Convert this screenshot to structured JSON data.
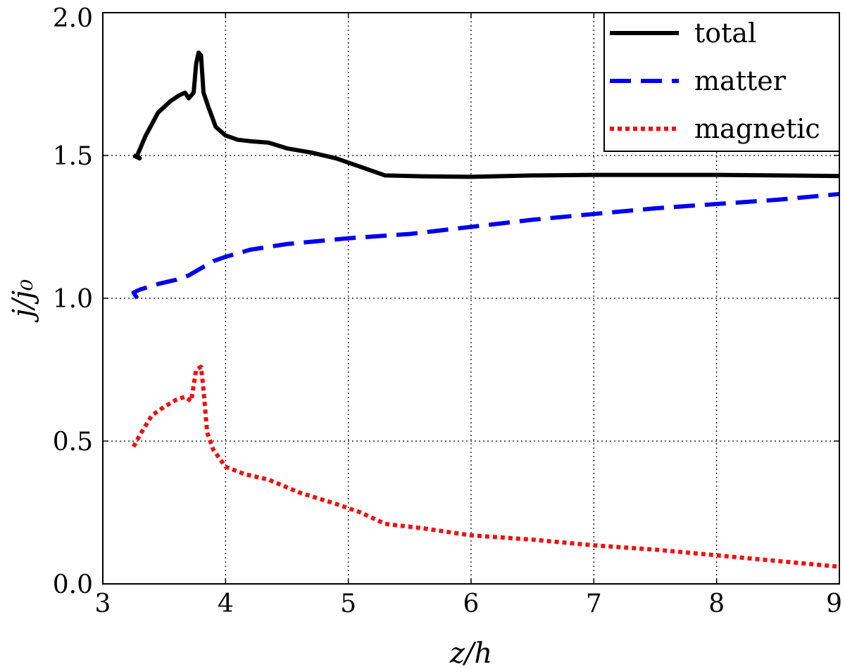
{
  "chart_data": {
    "type": "line",
    "xlabel": "z/h",
    "ylabel": "j/j₀",
    "xlim": [
      3,
      9
    ],
    "ylim": [
      0,
      2
    ],
    "xticks": [
      "3",
      "4",
      "5",
      "6",
      "7",
      "8",
      "9"
    ],
    "yticks": [
      "0.0",
      "0.5",
      "1.0",
      "1.5",
      "2.0"
    ],
    "grid": true,
    "legend_position": "top-right",
    "series": [
      {
        "name": "total",
        "color": "#000000",
        "style": "solid",
        "points": [
          [
            3.25,
            1.5
          ],
          [
            3.3,
            1.49
          ],
          [
            3.28,
            1.5
          ],
          [
            3.35,
            1.57
          ],
          [
            3.45,
            1.65
          ],
          [
            3.55,
            1.69
          ],
          [
            3.62,
            1.71
          ],
          [
            3.67,
            1.72
          ],
          [
            3.7,
            1.7
          ],
          [
            3.74,
            1.72
          ],
          [
            3.76,
            1.82
          ],
          [
            3.78,
            1.86
          ],
          [
            3.8,
            1.85
          ],
          [
            3.82,
            1.72
          ],
          [
            3.86,
            1.67
          ],
          [
            3.92,
            1.6
          ],
          [
            4.0,
            1.57
          ],
          [
            4.1,
            1.555
          ],
          [
            4.2,
            1.55
          ],
          [
            4.35,
            1.545
          ],
          [
            4.5,
            1.525
          ],
          [
            4.7,
            1.51
          ],
          [
            4.9,
            1.49
          ],
          [
            5.1,
            1.46
          ],
          [
            5.3,
            1.43
          ],
          [
            5.6,
            1.427
          ],
          [
            6.0,
            1.425
          ],
          [
            6.5,
            1.43
          ],
          [
            7.0,
            1.432
          ],
          [
            7.5,
            1.432
          ],
          [
            8.0,
            1.432
          ],
          [
            8.5,
            1.43
          ],
          [
            9.0,
            1.428
          ]
        ]
      },
      {
        "name": "matter",
        "color": "#0000ee",
        "style": "dashed",
        "points": [
          [
            3.28,
            1.0
          ],
          [
            3.25,
            1.02
          ],
          [
            3.3,
            1.03
          ],
          [
            3.45,
            1.05
          ],
          [
            3.6,
            1.065
          ],
          [
            3.7,
            1.08
          ],
          [
            3.78,
            1.1
          ],
          [
            3.9,
            1.13
          ],
          [
            4.0,
            1.145
          ],
          [
            4.2,
            1.17
          ],
          [
            4.5,
            1.19
          ],
          [
            5.0,
            1.21
          ],
          [
            5.5,
            1.225
          ],
          [
            6.0,
            1.25
          ],
          [
            6.5,
            1.275
          ],
          [
            7.0,
            1.295
          ],
          [
            7.5,
            1.315
          ],
          [
            8.0,
            1.33
          ],
          [
            8.5,
            1.345
          ],
          [
            9.0,
            1.365
          ]
        ]
      },
      {
        "name": "magnetic",
        "color": "#ee1111",
        "style": "dotted",
        "points": [
          [
            3.25,
            0.48
          ],
          [
            3.3,
            0.52
          ],
          [
            3.4,
            0.59
          ],
          [
            3.5,
            0.62
          ],
          [
            3.6,
            0.645
          ],
          [
            3.67,
            0.655
          ],
          [
            3.72,
            0.64
          ],
          [
            3.76,
            0.75
          ],
          [
            3.8,
            0.76
          ],
          [
            3.82,
            0.68
          ],
          [
            3.85,
            0.53
          ],
          [
            3.9,
            0.47
          ],
          [
            4.0,
            0.41
          ],
          [
            4.15,
            0.385
          ],
          [
            4.35,
            0.365
          ],
          [
            4.6,
            0.32
          ],
          [
            4.9,
            0.28
          ],
          [
            5.1,
            0.25
          ],
          [
            5.3,
            0.21
          ],
          [
            5.6,
            0.195
          ],
          [
            6.0,
            0.17
          ],
          [
            6.5,
            0.155
          ],
          [
            7.0,
            0.135
          ],
          [
            7.5,
            0.12
          ],
          [
            8.0,
            0.1
          ],
          [
            8.5,
            0.08
          ],
          [
            9.0,
            0.06
          ]
        ]
      }
    ]
  }
}
